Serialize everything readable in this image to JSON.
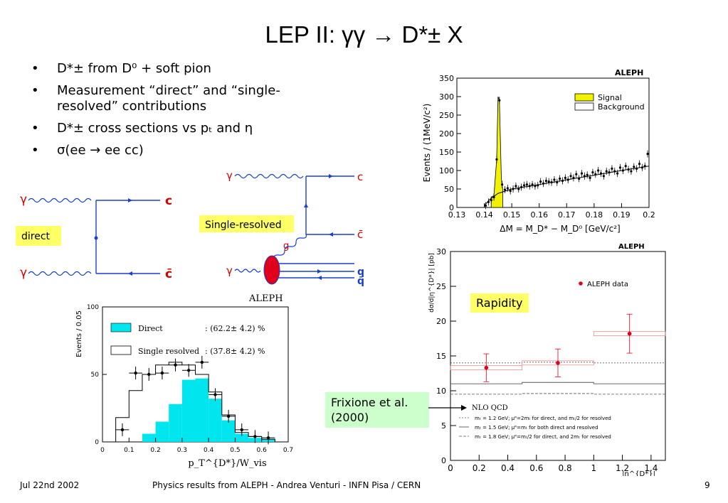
{
  "title": "LEP II: γγ → D*± X",
  "bullets": [
    "D*± from D⁰ + soft pion",
    "Measurement “direct” and “single-resolved” contributions",
    "D*± cross sections vs pₜ and η",
    "σ(ee → ee cc)"
  ],
  "diagrams": {
    "direct_label": "direct",
    "single_resolved_label": "Single-resolved",
    "gamma": "γ",
    "c": "c",
    "cbar": "c̄",
    "g": "g",
    "q": "q",
    "qbar": "q̄"
  },
  "rapidity_label": "Rapidity",
  "frixione_label": "Frixione et al. (2000)",
  "footer": {
    "date": "Jul 22nd 2002",
    "center": "Physics results from ALEPH - Andrea Venturi - INFN Pisa / CERN",
    "page": "9"
  },
  "colors": {
    "highlight": "#ffff66",
    "frixione_box": "#ccffcc",
    "cyan": "#00e5ee",
    "yellow_signal": "#f2f200",
    "red_data": "#e0001b",
    "blue_line": "#1a3fd0"
  },
  "chart_data": [
    {
      "type": "histogram",
      "title": "ALEPH",
      "xlabel": "ΔM = M_D* − M_D⁰ [GeV/c²]",
      "ylabel": "Events / (1MeV/c²)",
      "xlim": [
        0.13,
        0.2
      ],
      "ylim": [
        0,
        350
      ],
      "xticks": [
        "0.13",
        "0.14",
        "0.15",
        "0.16",
        "0.17",
        "0.18",
        "0.19",
        "0.2"
      ],
      "yticks": [
        "0",
        "50",
        "100",
        "150",
        "200",
        "250",
        "300",
        "350"
      ],
      "legend": [
        "Signal",
        "Background"
      ],
      "data_x": [
        0.1405,
        0.1415,
        0.1425,
        0.1435,
        0.1445,
        0.1455,
        0.1465,
        0.1475,
        0.1485,
        0.1495,
        0.1505,
        0.1515,
        0.1525,
        0.1535,
        0.1545,
        0.1555,
        0.1565,
        0.1575,
        0.1585,
        0.1595,
        0.1605,
        0.1615,
        0.1625,
        0.1635,
        0.1645,
        0.1655,
        0.1665,
        0.1675,
        0.1685,
        0.1695,
        0.1705,
        0.1715,
        0.1725,
        0.1735,
        0.1745,
        0.1755,
        0.1765,
        0.1775,
        0.1785,
        0.1795,
        0.1805,
        0.1815,
        0.1825,
        0.1835,
        0.1845,
        0.1855,
        0.1865,
        0.1875,
        0.1885,
        0.1895,
        0.1905,
        0.1915,
        0.1925,
        0.1935,
        0.1945,
        0.1955,
        0.1965,
        0.1975,
        0.1985,
        0.1995
      ],
      "data_y": [
        5,
        15,
        20,
        28,
        130,
        290,
        62,
        48,
        52,
        45,
        50,
        58,
        50,
        55,
        60,
        62,
        58,
        62,
        58,
        60,
        70,
        65,
        72,
        70,
        68,
        75,
        68,
        78,
        72,
        80,
        75,
        85,
        80,
        90,
        78,
        92,
        85,
        88,
        80,
        95,
        90,
        100,
        92,
        85,
        98,
        95,
        105,
        98,
        92,
        108,
        100,
        112,
        103,
        98,
        110,
        105,
        118,
        108,
        112,
        145
      ],
      "signal_x": [
        0.1425,
        0.1435,
        0.1445,
        0.145,
        0.1455,
        0.1462,
        0.1467
      ],
      "signal_y": [
        28,
        32,
        130,
        300,
        290,
        80,
        48
      ],
      "background_x": [
        0.14,
        0.142,
        0.145,
        0.15,
        0.16,
        0.17,
        0.18,
        0.19,
        0.2
      ],
      "background_y": [
        5,
        22,
        38,
        50,
        62,
        75,
        87,
        100,
        112
      ]
    },
    {
      "type": "histogram",
      "title": "ALEPH",
      "xlabel": "p_T^{D*}/W_vis",
      "ylabel": "Events / 0.05",
      "xlim": [
        0,
        0.7
      ],
      "ylim": [
        0,
        100
      ],
      "xticks": [
        "0",
        "0.1",
        "0.2",
        "0.3",
        "0.4",
        "0.5",
        "0.6",
        "0.7"
      ],
      "yticks": [
        "0",
        "50",
        "100"
      ],
      "legend": [
        "Direct",
        "Single resolved"
      ],
      "legend_values": [
        ": (62.2± 4.2) %",
        ": (37.8± 4.2) %"
      ],
      "bin_edges": [
        0.05,
        0.1,
        0.15,
        0.2,
        0.25,
        0.3,
        0.35,
        0.4,
        0.45,
        0.5,
        0.55,
        0.6,
        0.65
      ],
      "direct": [
        0,
        0,
        6,
        15,
        28,
        46,
        47,
        32,
        16,
        6,
        3,
        2
      ],
      "total": [
        18,
        38,
        50,
        57,
        59,
        57,
        50,
        37,
        20,
        7,
        4,
        2
      ],
      "data": [
        9,
        51,
        50,
        51,
        57,
        53,
        59,
        35,
        19,
        9,
        4,
        3
      ]
    },
    {
      "type": "scatter",
      "title": "ALEPH",
      "xlabel": "|η^{D*}|",
      "ylabel": "dσ/d|η^{D*}| [pb]",
      "xlim": [
        0,
        1.5
      ],
      "ylim": [
        0,
        30
      ],
      "xticks": [
        "0",
        "0.2",
        "0.4",
        "0.6",
        "0.8",
        "1",
        "1.2",
        "1.4"
      ],
      "yticks": [
        "0",
        "5",
        "10",
        "15",
        "20",
        "25",
        "30"
      ],
      "series": [
        {
          "name": "ALEPH data",
          "x": [
            0.25,
            0.75,
            1.25
          ],
          "y": [
            13.3,
            14.0,
            18.2
          ],
          "yerr": [
            2.0,
            2.0,
            2.8
          ],
          "xerr": [
            0.25,
            0.25,
            0.25
          ]
        }
      ],
      "nlo": {
        "label": "NLO QCD",
        "curves": [
          {
            "label": "mₜ = 1.2 GeV; μᴿ=2mₜ for direct, and mₜ/2 for resolved",
            "values": [
              14.0,
              14.1,
              14.0
            ]
          },
          {
            "label": "mₜ = 1.5 GeV; μᴿ=mₜ for both direct and resolved",
            "values": [
              11.0,
              11.2,
              11.0
            ]
          },
          {
            "label": "mₜ = 1.8 GeV; μᴿ=mₜ/2 for direct, and 2mₜ for resolved",
            "values": [
              9.5,
              9.6,
              9.5
            ]
          }
        ]
      }
    }
  ]
}
